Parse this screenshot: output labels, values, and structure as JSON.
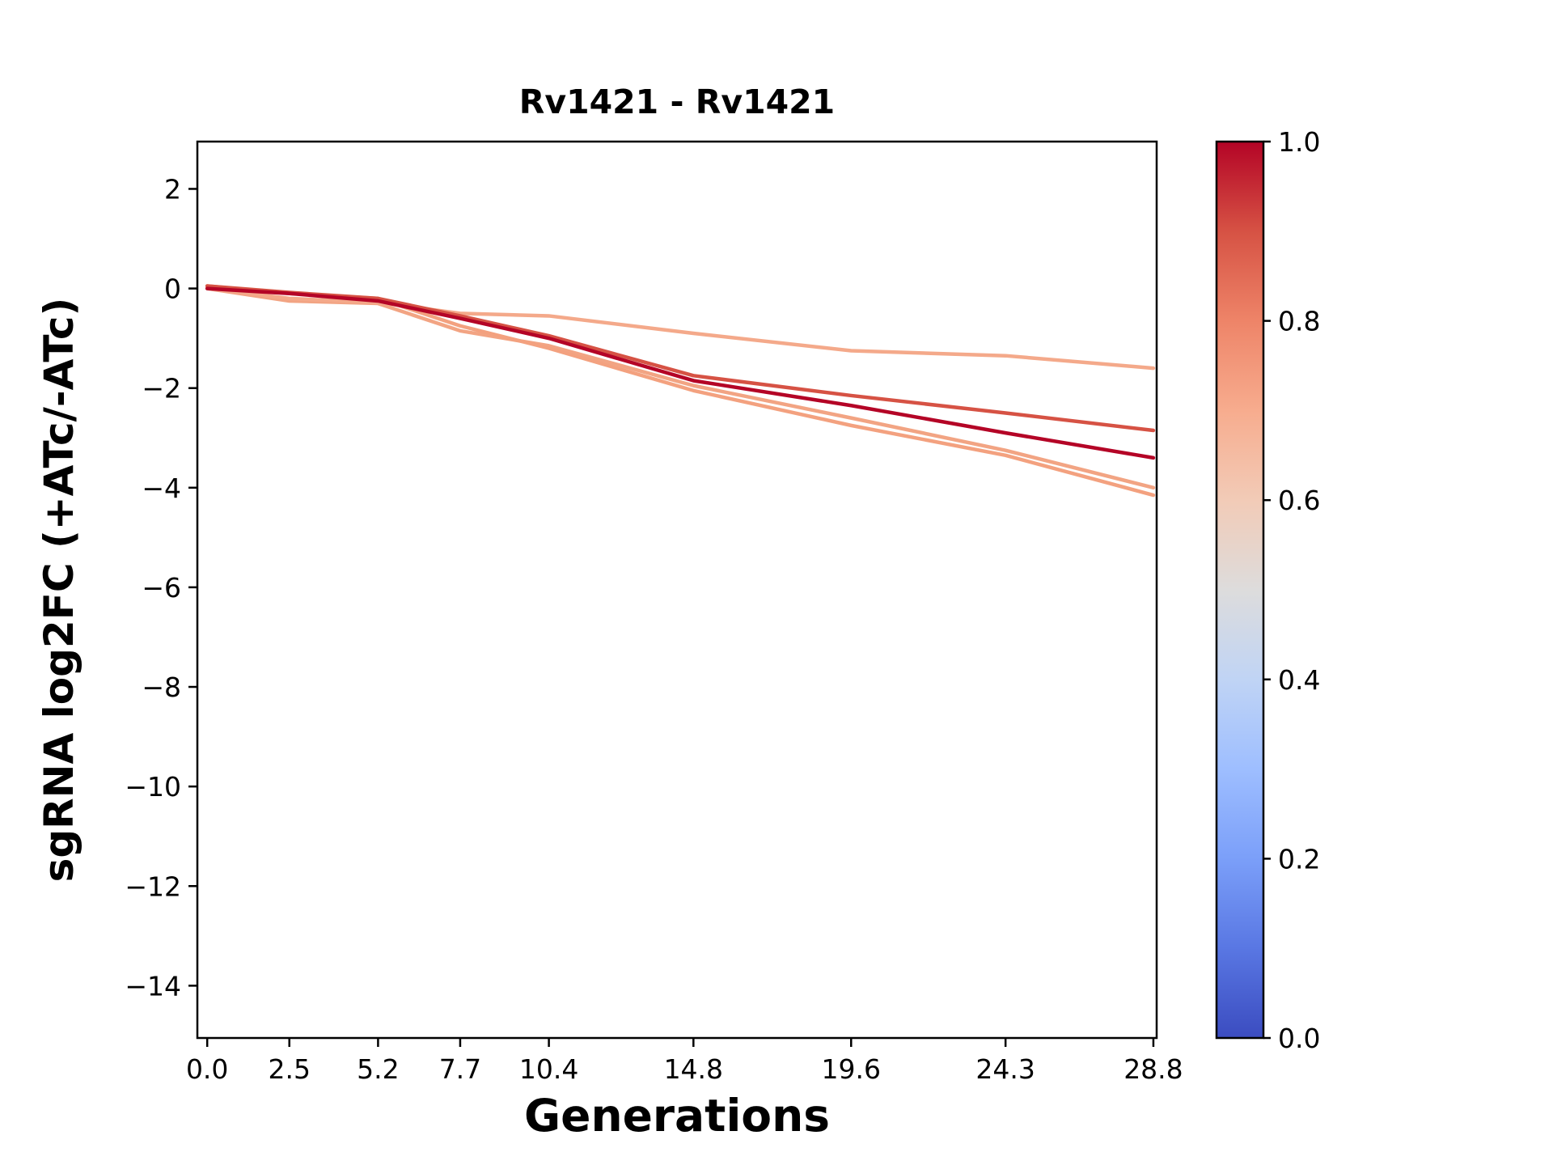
{
  "figure": {
    "background_color": "#ffffff",
    "axis_color": "#000000"
  },
  "chart_data": {
    "type": "line",
    "title": "Rv1421 - Rv1421",
    "xlabel": "Generations",
    "ylabel": "sgRNA log2FC (+ATc/-ATc)",
    "grid": false,
    "legend": "none",
    "xlim": [
      -0.3,
      28.9
    ],
    "ylim": [
      -15.05,
      2.95
    ],
    "x": [
      0.0,
      2.5,
      5.2,
      7.7,
      10.4,
      14.8,
      19.6,
      24.3,
      28.8
    ],
    "xticks": [
      {
        "value": 0.0,
        "label": "0.0"
      },
      {
        "value": 2.5,
        "label": "2.5"
      },
      {
        "value": 5.2,
        "label": "5.2"
      },
      {
        "value": 7.7,
        "label": "7.7"
      },
      {
        "value": 10.4,
        "label": "10.4"
      },
      {
        "value": 14.8,
        "label": "14.8"
      },
      {
        "value": 19.6,
        "label": "19.6"
      },
      {
        "value": 24.3,
        "label": "24.3"
      },
      {
        "value": 28.8,
        "label": "28.8"
      }
    ],
    "yticks": [
      {
        "value": 2,
        "label": "2"
      },
      {
        "value": 0,
        "label": "0"
      },
      {
        "value": -2,
        "label": "−2"
      },
      {
        "value": -4,
        "label": "−4"
      },
      {
        "value": -6,
        "label": "−6"
      },
      {
        "value": -8,
        "label": "−8"
      },
      {
        "value": -10,
        "label": "−10"
      },
      {
        "value": -12,
        "label": "−12"
      },
      {
        "value": -14,
        "label": "−14"
      }
    ],
    "series": [
      {
        "colormap_value": 0.66,
        "color": "#f2a483",
        "values": [
          0.0,
          -0.25,
          -0.3,
          -0.85,
          -1.15,
          -1.95,
          -2.6,
          -3.25,
          -4.0
        ]
      },
      {
        "colormap_value": 0.68,
        "color": "#f3a17f",
        "values": [
          0.05,
          -0.1,
          -0.2,
          -0.75,
          -1.2,
          -2.05,
          -2.75,
          -3.35,
          -4.15
        ]
      },
      {
        "colormap_value": 0.64,
        "color": "#f4a98a",
        "values": [
          0.0,
          -0.2,
          -0.28,
          -0.5,
          -0.55,
          -0.9,
          -1.25,
          -1.35,
          -1.6
        ]
      },
      {
        "colormap_value": 0.86,
        "color": "#d65244",
        "values": [
          0.05,
          -0.08,
          -0.2,
          -0.55,
          -0.95,
          -1.75,
          -2.15,
          -2.5,
          -2.85
        ]
      },
      {
        "colormap_value": 1.0,
        "color": "#b40426",
        "values": [
          0.0,
          -0.1,
          -0.25,
          -0.6,
          -1.0,
          -1.85,
          -2.35,
          -2.9,
          -3.4
        ]
      }
    ],
    "colorbar": {
      "colormap": "coolwarm",
      "min": 0.0,
      "max": 1.0,
      "ticks": [
        {
          "value": 1.0,
          "label": "1.0"
        },
        {
          "value": 0.8,
          "label": "0.8"
        },
        {
          "value": 0.6,
          "label": "0.6"
        },
        {
          "value": 0.4,
          "label": "0.4"
        },
        {
          "value": 0.2,
          "label": "0.2"
        },
        {
          "value": 0.0,
          "label": "0.0"
        }
      ],
      "gradient": [
        [
          "0.00",
          "#3b4cc0"
        ],
        [
          "0.10",
          "#5977e3"
        ],
        [
          "0.20",
          "#7b9ff9"
        ],
        [
          "0.30",
          "#9ebeff"
        ],
        [
          "0.40",
          "#c0d4f5"
        ],
        [
          "0.50",
          "#dddcdc"
        ],
        [
          "0.60",
          "#f2cbb7"
        ],
        [
          "0.70",
          "#f7ac8e"
        ],
        [
          "0.80",
          "#ee8468"
        ],
        [
          "0.90",
          "#d65244"
        ],
        [
          "1.00",
          "#b40426"
        ]
      ]
    }
  }
}
